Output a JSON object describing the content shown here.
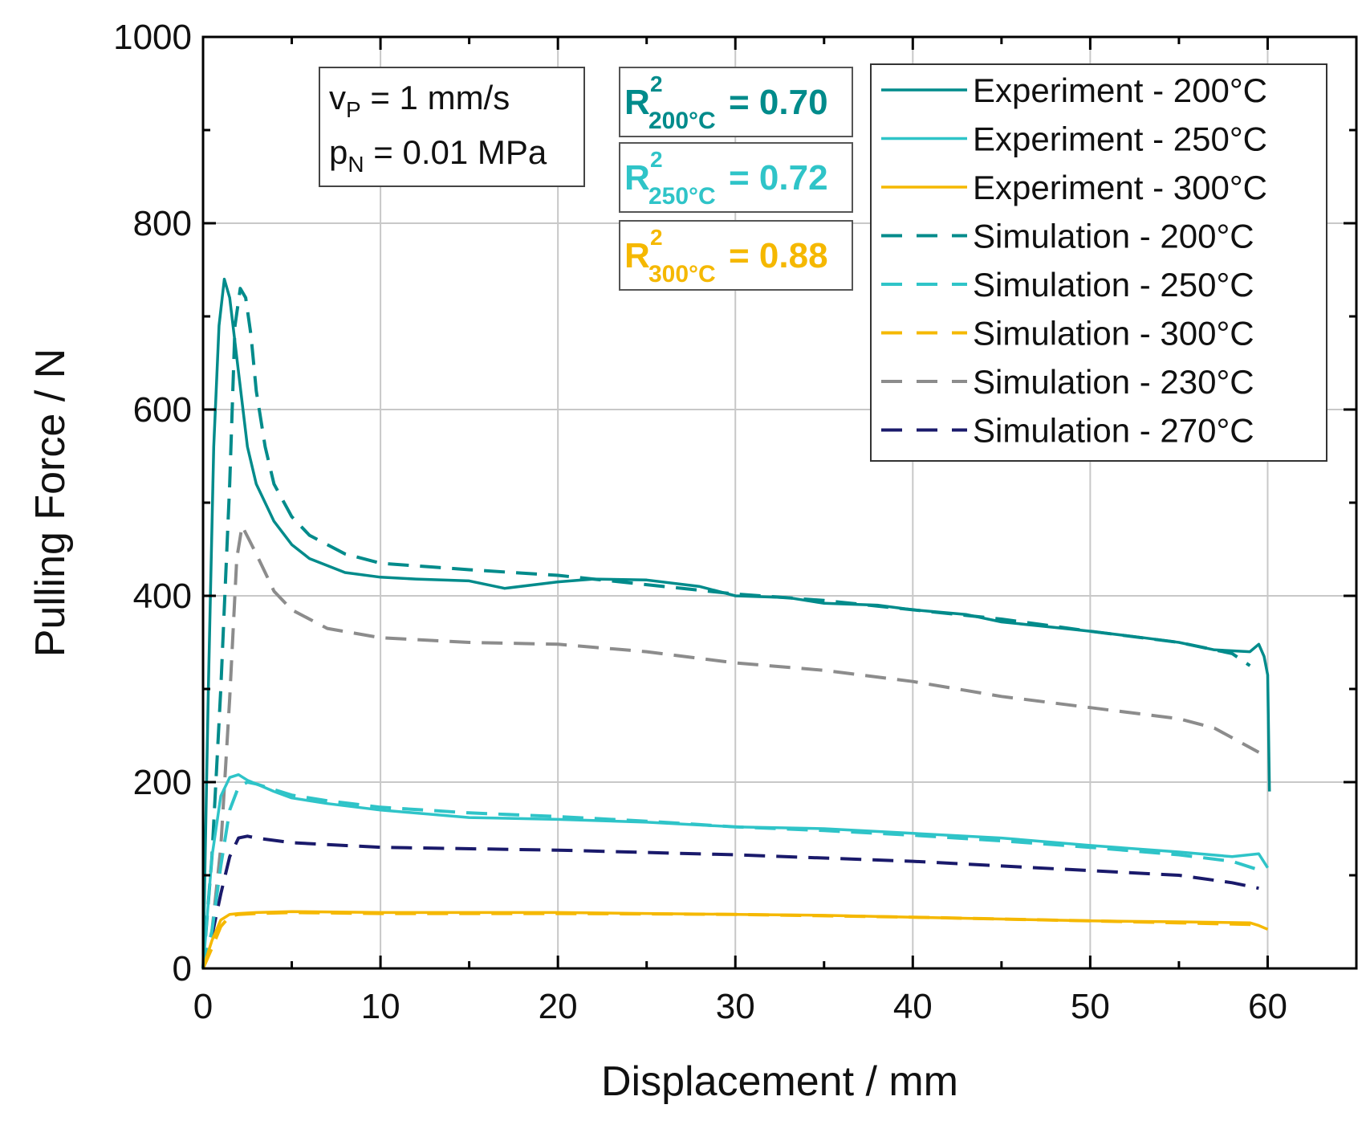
{
  "chart_data": {
    "type": "line",
    "xlabel": "Displacement / mm",
    "ylabel": "Pulling Force / N",
    "xlim": [
      0,
      65
    ],
    "ylim": [
      0,
      1000
    ],
    "x_ticks": [
      0,
      10,
      20,
      30,
      40,
      50,
      60
    ],
    "y_ticks": [
      0,
      200,
      400,
      600,
      800,
      1000
    ],
    "grid": true,
    "legend_position": "top-right",
    "parameters": {
      "vp_symbol": "v",
      "vp_sub": "P",
      "vp_value": " = 1 mm/s",
      "pn_symbol": "p",
      "pn_sub": "N",
      "pn_value": " = 0.01 MPa"
    },
    "r2_boxes": [
      {
        "base": "R",
        "sup": "2",
        "sub": "200°C",
        "value": " = 0.70",
        "color": "#008b8b"
      },
      {
        "base": "R",
        "sup": "2",
        "sub": "250°C",
        "value": " = 0.72",
        "color": "#2fc4c8"
      },
      {
        "base": "R",
        "sup": "2",
        "sub": "300°C",
        "value": " = 0.88",
        "color": "#f5b800"
      }
    ],
    "series": [
      {
        "name": "Experiment - 200°C",
        "style": "solid",
        "color": "#008b8b",
        "x": [
          0,
          0.3,
          0.6,
          0.9,
          1.2,
          1.5,
          2,
          2.5,
          3,
          4,
          5,
          6,
          8,
          10,
          12,
          15,
          17,
          20,
          22,
          25,
          28,
          30,
          33,
          35,
          38,
          40,
          43,
          45,
          48,
          50,
          53,
          55,
          57,
          59,
          59.5,
          59.8,
          60,
          60.1
        ],
        "y": [
          0,
          300,
          560,
          690,
          740,
          720,
          640,
          560,
          520,
          480,
          455,
          440,
          425,
          420,
          418,
          416,
          408,
          415,
          418,
          417,
          410,
          400,
          398,
          392,
          390,
          385,
          380,
          372,
          366,
          362,
          355,
          350,
          342,
          340,
          348,
          335,
          315,
          190
        ]
      },
      {
        "name": "Experiment - 250°C",
        "style": "solid",
        "color": "#2fc4c8",
        "x": [
          0,
          0.5,
          1,
          1.5,
          2,
          2.5,
          3,
          4,
          5,
          7,
          10,
          15,
          20,
          25,
          30,
          35,
          40,
          45,
          50,
          55,
          58,
          59.5,
          60
        ],
        "y": [
          0,
          120,
          185,
          205,
          208,
          202,
          198,
          190,
          183,
          177,
          170,
          162,
          160,
          157,
          152,
          150,
          145,
          140,
          132,
          125,
          120,
          123,
          108
        ]
      },
      {
        "name": "Experiment - 300°C",
        "style": "solid",
        "color": "#f5b800",
        "x": [
          0,
          0.5,
          1,
          1.5,
          2,
          3,
          5,
          10,
          15,
          20,
          25,
          30,
          35,
          40,
          45,
          50,
          55,
          59,
          59.5,
          60
        ],
        "y": [
          0,
          30,
          52,
          58,
          59,
          60,
          61,
          60,
          60,
          60,
          59,
          58,
          57,
          55,
          53,
          51,
          50,
          49,
          46,
          42
        ]
      },
      {
        "name": "Simulation - 200°C",
        "style": "dashed",
        "color": "#008b8b",
        "x": [
          0,
          0.5,
          1,
          1.5,
          1.8,
          2.1,
          2.4,
          2.7,
          3,
          3.5,
          4,
          5,
          6,
          8,
          10,
          15,
          20,
          25,
          30,
          35,
          40,
          45,
          50,
          55,
          58,
          59
        ],
        "y": [
          0,
          120,
          300,
          520,
          690,
          730,
          720,
          680,
          620,
          560,
          520,
          485,
          465,
          445,
          435,
          428,
          422,
          412,
          402,
          395,
          385,
          375,
          362,
          350,
          338,
          325
        ]
      },
      {
        "name": "Simulation - 250°C",
        "style": "dashed",
        "color": "#2fc4c8",
        "x": [
          0,
          0.5,
          1,
          1.5,
          2,
          2.5,
          3,
          4,
          5,
          7,
          10,
          15,
          20,
          25,
          30,
          35,
          40,
          45,
          50,
          55,
          58,
          59.8
        ],
        "y": [
          0,
          40,
          110,
          170,
          195,
          200,
          198,
          192,
          186,
          180,
          173,
          167,
          163,
          158,
          152,
          148,
          143,
          137,
          130,
          122,
          115,
          104
        ]
      },
      {
        "name": "Simulation - 300°C",
        "style": "dashed",
        "color": "#f5b800",
        "x": [
          0,
          0.5,
          1,
          1.5,
          2,
          3,
          5,
          10,
          20,
          30,
          40,
          50,
          55,
          59.5
        ],
        "y": [
          0,
          22,
          45,
          56,
          58,
          59,
          60,
          59,
          59,
          58,
          55,
          51,
          49,
          47
        ]
      },
      {
        "name": "Simulation - 230°C",
        "style": "dashed",
        "color": "#8c8c8c",
        "x": [
          0,
          0.5,
          1,
          1.5,
          1.9,
          2.2,
          2.6,
          3,
          3.5,
          4,
          5,
          7,
          10,
          15,
          20,
          25,
          30,
          35,
          40,
          45,
          50,
          55,
          57,
          59.5
        ],
        "y": [
          0,
          40,
          130,
          290,
          440,
          475,
          460,
          445,
          425,
          405,
          385,
          365,
          355,
          350,
          348,
          340,
          328,
          320,
          308,
          292,
          280,
          268,
          258,
          232
        ]
      },
      {
        "name": "Simulation - 270°C",
        "style": "dashed",
        "color": "#1a1a6b",
        "x": [
          0,
          0.5,
          1,
          1.5,
          2,
          2.5,
          3,
          5,
          10,
          20,
          30,
          40,
          45,
          50,
          55,
          58,
          59.5
        ],
        "y": [
          0,
          35,
          80,
          120,
          140,
          142,
          140,
          135,
          130,
          127,
          122,
          115,
          110,
          105,
          100,
          92,
          86
        ]
      }
    ]
  }
}
